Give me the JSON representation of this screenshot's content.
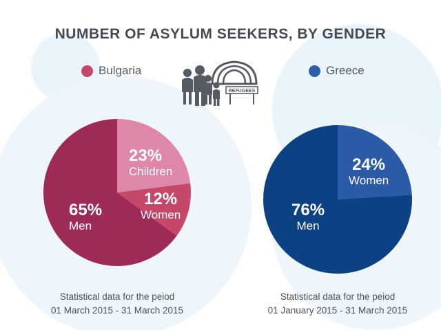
{
  "title": "NUMBER OF ASYLUM SEEKERS, BY GENDER",
  "icon": {
    "name": "refugees-icon",
    "sign_text": "REFUGEES"
  },
  "colors": {
    "bulgaria_legend": "#c4466a",
    "greece_legend": "#2f5ea8",
    "bg_bubbles": "#eaf4fb"
  },
  "chart_data": [
    {
      "type": "pie",
      "title": "Bulgaria",
      "slices": [
        {
          "label": "Children",
          "pct_label": "23%",
          "value": 23,
          "color": "#de87a8"
        },
        {
          "label": "Women",
          "pct_label": "12%",
          "value": 12,
          "color": "#c64868"
        },
        {
          "label": "Men",
          "pct_label": "65%",
          "value": 65,
          "color": "#9e2b57"
        }
      ],
      "caption": [
        "Statistical data for the peiod",
        "01 March 2015 - 31 March 2015"
      ]
    },
    {
      "type": "pie",
      "title": "Greece",
      "slices": [
        {
          "label": "Women",
          "pct_label": "24%",
          "value": 24,
          "color": "#2b5ba6"
        },
        {
          "label": "Men",
          "pct_label": "76%",
          "value": 76,
          "color": "#0c4283"
        }
      ],
      "caption": [
        "Statistical data for the peiod",
        "01 January 2015 - 31 March 2015"
      ]
    }
  ]
}
